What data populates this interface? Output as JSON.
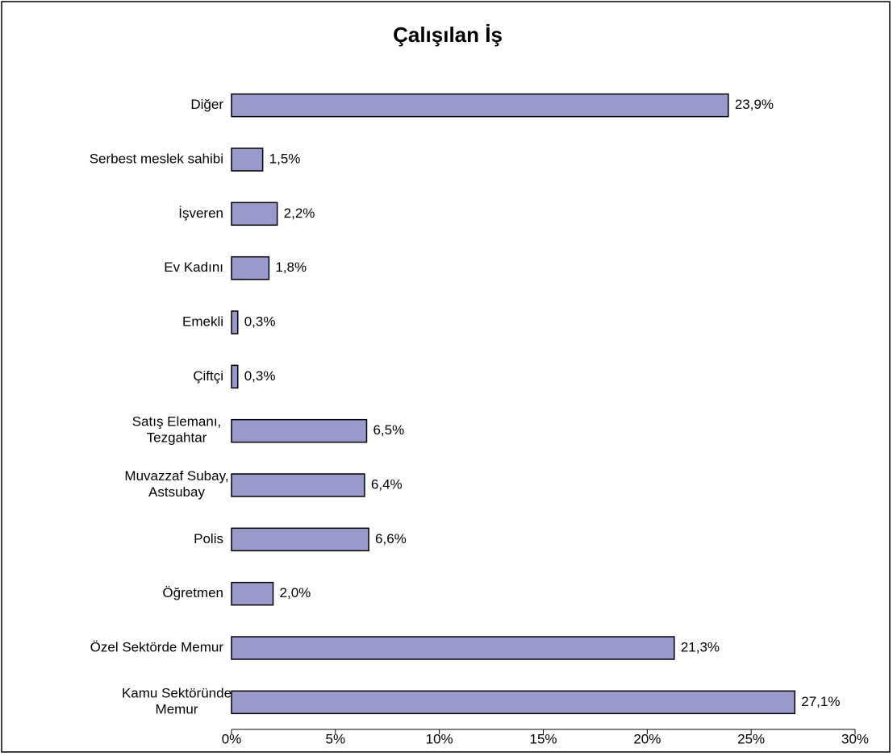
{
  "chart_data": {
    "type": "bar",
    "orientation": "horizontal",
    "title": "Çalışılan İş",
    "categories": [
      "Diğer",
      "Serbest meslek sahibi",
      "İşveren",
      "Ev Kadını",
      "Emekli",
      "Çiftçi",
      "Satış Elemanı,\nTezgahtar",
      "Muvazzaf Subay,\nAstsubay",
      "Polis",
      "Öğretmen",
      "Özel Sektörde Memur",
      "Kamu Sektöründe\nMemur"
    ],
    "values": [
      23.9,
      1.5,
      2.2,
      1.8,
      0.3,
      0.3,
      6.5,
      6.4,
      6.6,
      2.0,
      21.3,
      27.1
    ],
    "value_labels": [
      "23,9%",
      "1,5%",
      "2,2%",
      "1,8%",
      "0,3%",
      "0,3%",
      "6,5%",
      "6,4%",
      "6,6%",
      "2,0%",
      "21,3%",
      "27,1%"
    ],
    "color": "#9999cc",
    "xlim": [
      0,
      30
    ],
    "xticks": [
      {
        "value": 0,
        "label": "0%"
      },
      {
        "value": 5,
        "label": "5%"
      },
      {
        "value": 10,
        "label": "10%"
      },
      {
        "value": 15,
        "label": "15%"
      },
      {
        "value": 20,
        "label": "20%"
      },
      {
        "value": 25,
        "label": "25%"
      },
      {
        "value": 30,
        "label": "30%"
      }
    ],
    "grid": false
  }
}
